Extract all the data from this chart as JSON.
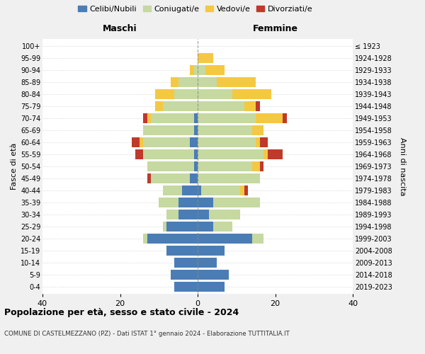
{
  "age_groups": [
    "0-4",
    "5-9",
    "10-14",
    "15-19",
    "20-24",
    "25-29",
    "30-34",
    "35-39",
    "40-44",
    "45-49",
    "50-54",
    "55-59",
    "60-64",
    "65-69",
    "70-74",
    "75-79",
    "80-84",
    "85-89",
    "90-94",
    "95-99",
    "100+"
  ],
  "birth_years": [
    "2019-2023",
    "2014-2018",
    "2009-2013",
    "2004-2008",
    "1999-2003",
    "1994-1998",
    "1989-1993",
    "1984-1988",
    "1979-1983",
    "1974-1978",
    "1969-1973",
    "1964-1968",
    "1959-1963",
    "1954-1958",
    "1949-1953",
    "1944-1948",
    "1939-1943",
    "1934-1938",
    "1929-1933",
    "1924-1928",
    "≤ 1923"
  ],
  "colors": {
    "celibi": "#4a7db5",
    "coniugati": "#c5d9a0",
    "vedovi": "#f5c842",
    "divorziati": "#c0392b"
  },
  "males": {
    "celibi": [
      6,
      7,
      6,
      8,
      13,
      8,
      5,
      5,
      4,
      2,
      1,
      1,
      2,
      1,
      1,
      0,
      0,
      0,
      0,
      0,
      0
    ],
    "coniugati": [
      0,
      0,
      0,
      0,
      1,
      1,
      3,
      5,
      5,
      10,
      12,
      13,
      12,
      13,
      11,
      9,
      6,
      5,
      1,
      0,
      0
    ],
    "vedovi": [
      0,
      0,
      0,
      0,
      0,
      0,
      0,
      0,
      0,
      0,
      0,
      0,
      1,
      0,
      1,
      2,
      5,
      2,
      1,
      0,
      0
    ],
    "divorziati": [
      0,
      0,
      0,
      0,
      0,
      0,
      0,
      0,
      0,
      1,
      0,
      2,
      2,
      0,
      1,
      0,
      0,
      0,
      0,
      0,
      0
    ]
  },
  "females": {
    "nubili": [
      7,
      8,
      5,
      7,
      14,
      4,
      3,
      4,
      1,
      0,
      0,
      0,
      0,
      0,
      0,
      0,
      0,
      0,
      0,
      0,
      0
    ],
    "coniugate": [
      0,
      0,
      0,
      0,
      3,
      5,
      8,
      12,
      10,
      16,
      14,
      17,
      15,
      14,
      15,
      12,
      9,
      5,
      2,
      0,
      0
    ],
    "vedove": [
      0,
      0,
      0,
      0,
      0,
      0,
      0,
      0,
      1,
      0,
      2,
      1,
      1,
      3,
      7,
      3,
      10,
      10,
      5,
      4,
      0
    ],
    "divorziate": [
      0,
      0,
      0,
      0,
      0,
      0,
      0,
      0,
      1,
      0,
      1,
      4,
      2,
      0,
      1,
      1,
      0,
      0,
      0,
      0,
      0
    ]
  },
  "xlim": 40,
  "title": "Popolazione per età, sesso e stato civile - 2024",
  "subtitle": "COMUNE DI CASTELMEZZANO (PZ) - Dati ISTAT 1° gennaio 2024 - Elaborazione TUTTITALIA.IT",
  "ylabel_left": "Fasce di età",
  "ylabel_right": "Anni di nascita",
  "xlabel_left": "Maschi",
  "xlabel_right": "Femmine",
  "bg_color": "#f0f0f0",
  "plot_bg": "#ffffff",
  "grid_color": "#cccccc"
}
